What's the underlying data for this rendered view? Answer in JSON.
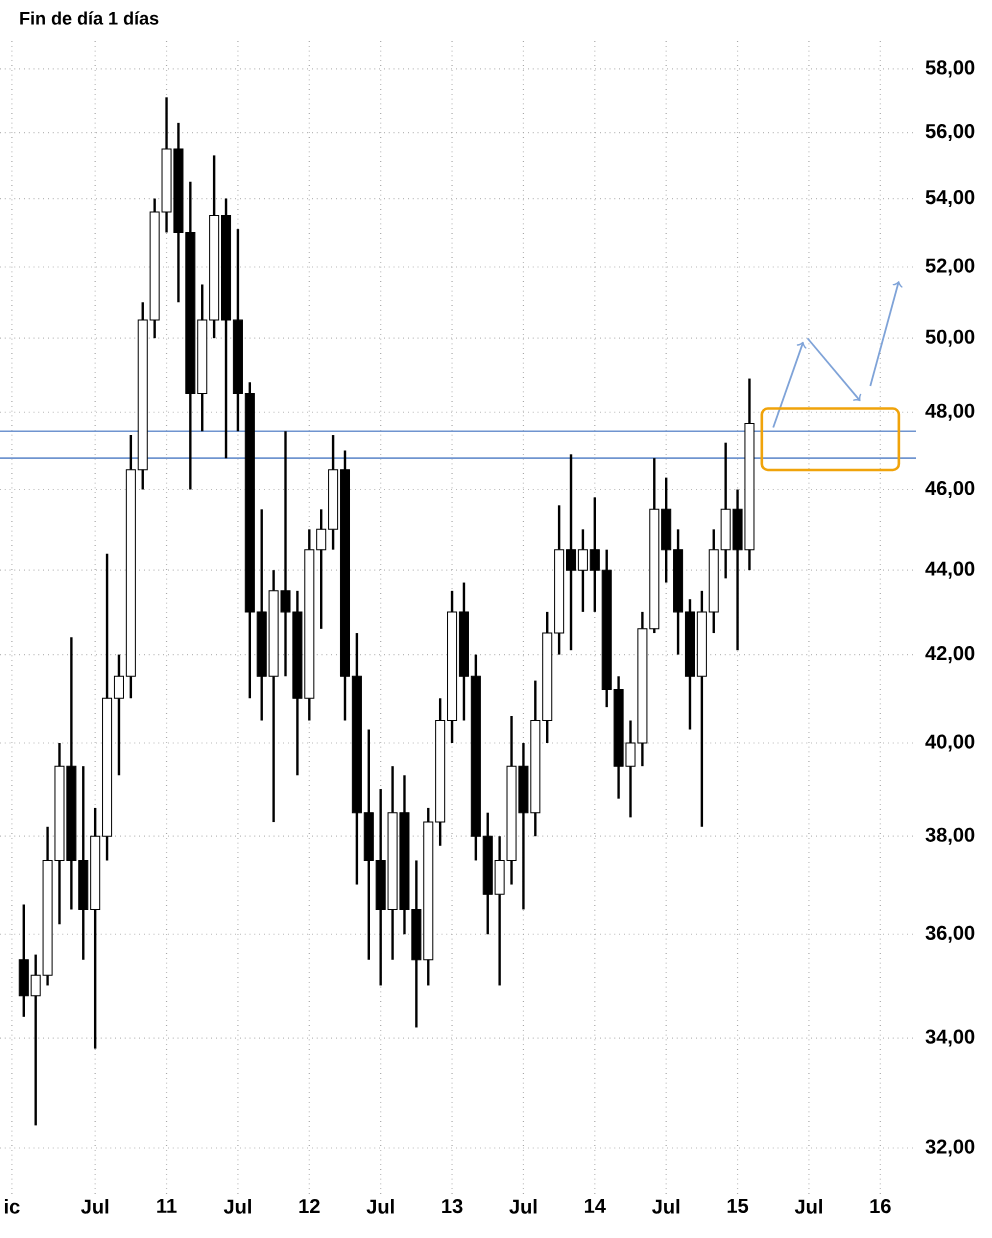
{
  "chart_data": {
    "type": "candlestick",
    "title": "Fin de día 1 días",
    "x": [
      "2010-01",
      "2010-02",
      "2010-03",
      "2010-04",
      "2010-05",
      "2010-06",
      "2010-07",
      "2010-08",
      "2010-09",
      "2010-10",
      "2010-11",
      "2010-12",
      "2011-01",
      "2011-02",
      "2011-03",
      "2011-04",
      "2011-05",
      "2011-06",
      "2011-07",
      "2011-08",
      "2011-09",
      "2011-10",
      "2011-11",
      "2011-12",
      "2012-01",
      "2012-02",
      "2012-03",
      "2012-04",
      "2012-05",
      "2012-06",
      "2012-07",
      "2012-08",
      "2012-09",
      "2012-10",
      "2012-11",
      "2012-12",
      "2013-01",
      "2013-02",
      "2013-03",
      "2013-04",
      "2013-05",
      "2013-06",
      "2013-07",
      "2013-08",
      "2013-09",
      "2013-10",
      "2013-11",
      "2013-12",
      "2014-01",
      "2014-02",
      "2014-03",
      "2014-04",
      "2014-05",
      "2014-06",
      "2014-07",
      "2014-08",
      "2014-09",
      "2014-10",
      "2014-11",
      "2014-12",
      "2015-01",
      "2015-02"
    ],
    "ohlc": [
      [
        35.5,
        36.6,
        34.4,
        34.8
      ],
      [
        34.8,
        35.6,
        32.4,
        35.2
      ],
      [
        35.2,
        38.2,
        35,
        37.5
      ],
      [
        37.5,
        40,
        36.2,
        39.5
      ],
      [
        39.5,
        42.4,
        36.5,
        37.5
      ],
      [
        37.5,
        39.5,
        35.5,
        36.5
      ],
      [
        36.5,
        38.6,
        33.8,
        38
      ],
      [
        38,
        44.4,
        37.5,
        41
      ],
      [
        41,
        42,
        39.3,
        41.5
      ],
      [
        41.5,
        47.4,
        41,
        46.5
      ],
      [
        46.5,
        51,
        46,
        50.5
      ],
      [
        50.5,
        54,
        50,
        53.6
      ],
      [
        53.6,
        57.1,
        53,
        55.5
      ],
      [
        55.5,
        56.3,
        51,
        53
      ],
      [
        53,
        54.5,
        46,
        48.5
      ],
      [
        48.5,
        51.5,
        47.5,
        50.5
      ],
      [
        50.5,
        55.3,
        50,
        53.5
      ],
      [
        53.5,
        54,
        46.8,
        50.5
      ],
      [
        50.5,
        53.1,
        47.5,
        48.5
      ],
      [
        48.5,
        48.8,
        41,
        43
      ],
      [
        43,
        45.5,
        40.5,
        41.5
      ],
      [
        41.5,
        44,
        38.3,
        43.5
      ],
      [
        43.5,
        47.5,
        41.5,
        43
      ],
      [
        43,
        43.5,
        39.3,
        41
      ],
      [
        41,
        45,
        40.5,
        44.5
      ],
      [
        44.5,
        45.5,
        42.6,
        45
      ],
      [
        45,
        47.4,
        44.5,
        46.5
      ],
      [
        46.5,
        47,
        40.5,
        41.5
      ],
      [
        41.5,
        42.5,
        37,
        38.5
      ],
      [
        38.5,
        40.3,
        35.5,
        37.5
      ],
      [
        37.5,
        39,
        35,
        36.5
      ],
      [
        36.5,
        39.5,
        35.5,
        38.5
      ],
      [
        38.5,
        39.3,
        36,
        36.5
      ],
      [
        36.5,
        37.5,
        34.2,
        35.5
      ],
      [
        35.5,
        38.6,
        35,
        38.3
      ],
      [
        38.3,
        41,
        37.8,
        40.5
      ],
      [
        40.5,
        43.5,
        40,
        43
      ],
      [
        43,
        43.7,
        40.5,
        41.5
      ],
      [
        41.5,
        42,
        37.5,
        38
      ],
      [
        38,
        38.5,
        36,
        36.8
      ],
      [
        36.8,
        38,
        35,
        37.5
      ],
      [
        37.5,
        40.6,
        37,
        39.5
      ],
      [
        39.5,
        40,
        36.5,
        38.5
      ],
      [
        38.5,
        41.4,
        38,
        40.5
      ],
      [
        40.5,
        43,
        40,
        42.5
      ],
      [
        42.5,
        45.6,
        42,
        44.5
      ],
      [
        44.5,
        46.9,
        42.1,
        44
      ],
      [
        44,
        45,
        43,
        44.5
      ],
      [
        44.5,
        45.8,
        43,
        44
      ],
      [
        44,
        44.5,
        40.8,
        41.2
      ],
      [
        41.2,
        41.5,
        38.8,
        39.5
      ],
      [
        39.5,
        40.5,
        38.4,
        40
      ],
      [
        40,
        43,
        39.5,
        42.6
      ],
      [
        42.6,
        46.8,
        42.5,
        45.5
      ],
      [
        45.5,
        46.3,
        43.7,
        44.5
      ],
      [
        44.5,
        45,
        42,
        43
      ],
      [
        43,
        43.3,
        40.3,
        41.5
      ],
      [
        41.5,
        43.5,
        38.2,
        43
      ],
      [
        43,
        45,
        42.5,
        44.5
      ],
      [
        44.5,
        47.2,
        43.8,
        45.5
      ],
      [
        45.5,
        46,
        42.1,
        44.5
      ],
      [
        44.5,
        48.9,
        44,
        47.7
      ]
    ],
    "xlim": [
      "2009-11",
      "2016-04"
    ],
    "xticks": [
      {
        "value": "2009-12",
        "label": "ic"
      },
      {
        "value": "2010-07",
        "label": "Jul"
      },
      {
        "value": "2011-01",
        "label": "11"
      },
      {
        "value": "2011-07",
        "label": "Jul"
      },
      {
        "value": "2012-01",
        "label": "12"
      },
      {
        "value": "2012-07",
        "label": "Jul"
      },
      {
        "value": "2013-01",
        "label": "13"
      },
      {
        "value": "2013-07",
        "label": "Jul"
      },
      {
        "value": "2014-01",
        "label": "14"
      },
      {
        "value": "2014-07",
        "label": "Jul"
      },
      {
        "value": "2015-01",
        "label": "15"
      },
      {
        "value": "2015-07",
        "label": "Jul"
      },
      {
        "value": "2016-01",
        "label": "16"
      }
    ],
    "ylim": [
      31.2,
      59
    ],
    "yticks": [
      {
        "value": 32,
        "label": "32,00"
      },
      {
        "value": 34,
        "label": "34,00"
      },
      {
        "value": 36,
        "label": "36,00"
      },
      {
        "value": 38,
        "label": "38,00"
      },
      {
        "value": 40,
        "label": "40,00"
      },
      {
        "value": 42,
        "label": "42,00"
      },
      {
        "value": 44,
        "label": "44,00"
      },
      {
        "value": 46,
        "label": "46,00"
      },
      {
        "value": 48,
        "label": "48,00"
      },
      {
        "value": 50,
        "label": "50,00"
      },
      {
        "value": 52,
        "label": "52,00"
      },
      {
        "value": 54,
        "label": "54,00"
      },
      {
        "value": 56,
        "label": "56,00"
      },
      {
        "value": 58,
        "label": "58,00"
      }
    ],
    "log": "y",
    "grid": true,
    "ref_lines": [
      {
        "axis": "y",
        "value": 47.5,
        "color": "#6f94cf"
      },
      {
        "axis": "y",
        "value": 46.8,
        "color": "#6f94cf"
      }
    ]
  }
}
